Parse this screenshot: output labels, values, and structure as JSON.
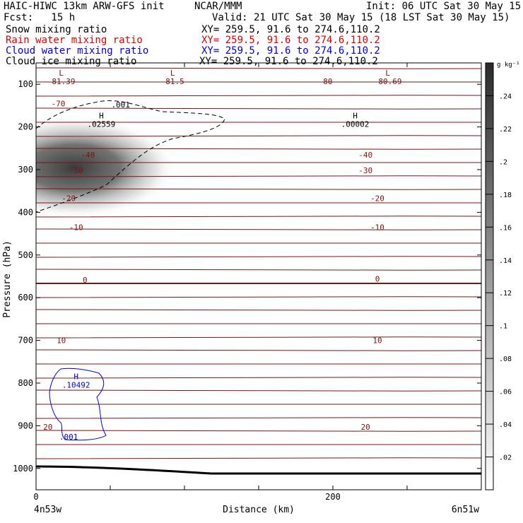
{
  "header": {
    "model": "HAIC-HIWC 13km ARW-GFS init",
    "org": "NCAR/MMM",
    "init": "Init: 06 UTC Sat 30 May 15",
    "fcst": "Fcst:   15 h",
    "valid": "Valid: 21 UTC Sat 30 May 15 (18 LST Sat 30 May 15)",
    "fields": [
      {
        "label": "Snow mixing ratio",
        "xy": "XY= 259.5, 91.6 to 274.6,110.2",
        "color": "#000000"
      },
      {
        "label": "Rain water mixing ratio",
        "xy": "XY= 259.5, 91.6 to 274.6,110.2",
        "color": "#e00000"
      },
      {
        "label": "Cloud water mixing ratio",
        "xy": "XY= 259.5, 91.6 to 274.6,110.2",
        "color": "#0000e0"
      },
      {
        "label": "Cloud ice mixing ratio",
        "xy": "XY= 259.5, 91.6 to 274.6,110.2",
        "color": "#000000"
      }
    ]
  },
  "chart_data": {
    "type": "cross-section contour",
    "xlabel": "Distance (km)",
    "ylabel": "Pressure (hPa)",
    "x_ticks": [
      0,
      200
    ],
    "xlim": [
      0,
      300
    ],
    "ylim": [
      1050,
      50
    ],
    "y_ticks": [
      100,
      200,
      300,
      400,
      500,
      600,
      700,
      800,
      900,
      1000
    ],
    "left_endpoint": "4n53w",
    "right_endpoint": "6n51w",
    "colorbar": {
      "unit": "g kg⁻¹",
      "levels": [
        ".02",
        ".04",
        ".06",
        ".08",
        ".1",
        ".12",
        ".14",
        ".16",
        ".18",
        ".2",
        ".22",
        ".24"
      ]
    },
    "temperature_contours": {
      "color": "#7a1414",
      "labels": [
        {
          "text": "-70",
          "x": 15,
          "p": 145
        },
        {
          "text": "-80",
          "x": 195,
          "p": 93
        },
        {
          "text": "-40",
          "x": 35,
          "p": 265
        },
        {
          "text": "-40",
          "x": 222,
          "p": 265
        },
        {
          "text": "-30",
          "x": 27,
          "p": 302
        },
        {
          "text": "-30",
          "x": 222,
          "p": 302
        },
        {
          "text": "-20",
          "x": 22,
          "p": 367
        },
        {
          "text": "-20",
          "x": 230,
          "p": 367
        },
        {
          "text": "-10",
          "x": 27,
          "p": 435
        },
        {
          "text": "-10",
          "x": 230,
          "p": 435
        },
        {
          "text": "0",
          "x": 33,
          "p": 558
        },
        {
          "text": "0",
          "x": 230,
          "p": 556
        },
        {
          "text": "10",
          "x": 17,
          "p": 700
        },
        {
          "text": "10",
          "x": 230,
          "p": 700
        },
        {
          "text": "20",
          "x": 8,
          "p": 903
        },
        {
          "text": "20",
          "x": 222,
          "p": 903
        }
      ]
    },
    "extrema": [
      {
        "letter": "L",
        "value": "-81.39",
        "x": 17,
        "p": 93,
        "color": "#7a1414"
      },
      {
        "letter": "L",
        "value": "-81.5",
        "x": 92,
        "p": 93,
        "color": "#7a1414"
      },
      {
        "letter": "L",
        "value": "-80.69",
        "x": 237,
        "p": 93,
        "color": "#7a1414"
      },
      {
        "letter": "H",
        "value": ".02559",
        "x": 44,
        "p": 193,
        "color": "#000000"
      },
      {
        "letter": "H",
        "value": ".00002",
        "x": 215,
        "p": 193,
        "color": "#000000"
      },
      {
        "letter": "H",
        "value": ".10492",
        "x": 27,
        "p": 804,
        "color": "#0000e0"
      }
    ],
    "cloud_ice_contour": {
      "label": ".001",
      "x": 57,
      "p": 148,
      "style": "dashed"
    },
    "cloud_water_contour": {
      "label": ".001",
      "x": 22,
      "p": 926,
      "color": "#0000e0"
    },
    "snow_max_shading": {
      "value": 0.24,
      "x_center": 10,
      "p_center": 275
    }
  }
}
